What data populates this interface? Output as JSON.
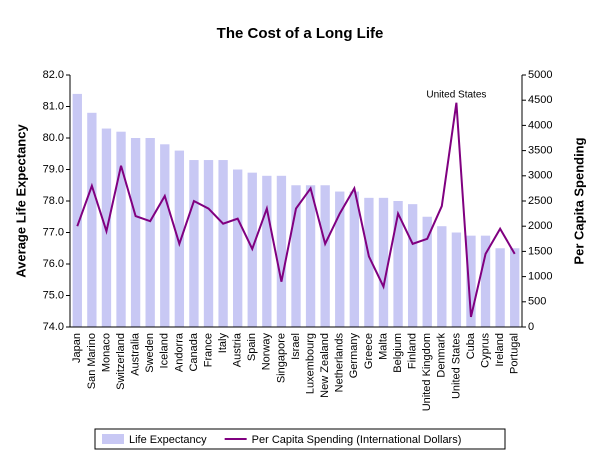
{
  "chart_data": {
    "type": "bar",
    "title": "The Cost of a Long Life",
    "y_label": "Average Life Expectancy",
    "y2_label": "Per Capita Spending",
    "annotation": "United States",
    "categories": [
      "Japan",
      "San Marino",
      "Monaco",
      "Switzerland",
      "Australia",
      "Sweden",
      "Iceland",
      "Andorra",
      "Canada",
      "France",
      "Italy",
      "Austria",
      "Spain",
      "Norway",
      "Singapore",
      "Israel",
      "Luxembourg",
      "New Zealand",
      "Netherlands",
      "Germany",
      "Greece",
      "Malta",
      "Belgium",
      "Finland",
      "United Kingdom",
      "Denmark",
      "United States",
      "Cuba",
      "Cyprus",
      "Ireland",
      "Portugal"
    ],
    "series": [
      {
        "name": "Life Expectancy",
        "type": "bar",
        "color": "#c8c8f4",
        "values": [
          81.4,
          80.8,
          80.3,
          80.2,
          80.0,
          80.0,
          79.8,
          79.6,
          79.3,
          79.3,
          79.3,
          79.0,
          78.9,
          78.8,
          78.8,
          78.5,
          78.5,
          78.5,
          78.3,
          78.3,
          78.1,
          78.1,
          78.0,
          77.9,
          77.5,
          77.2,
          77.0,
          76.9,
          76.9,
          76.5,
          76.5
        ]
      },
      {
        "name": "Per Capita Spending (International Dollars)",
        "type": "line",
        "axis": "y2",
        "color": "#800080",
        "values": [
          2000,
          2800,
          1900,
          3200,
          2200,
          2100,
          2600,
          1650,
          2500,
          2350,
          2050,
          2150,
          1550,
          2350,
          900,
          2350,
          2750,
          1650,
          2250,
          2750,
          1400,
          800,
          2250,
          1650,
          1750,
          2400,
          4450,
          200,
          1450,
          1950,
          1450
        ]
      }
    ],
    "ylim": [
      74,
      82
    ],
    "yticks": [
      {
        "value": 74,
        "label": "74.0"
      },
      {
        "value": 75,
        "label": "75.0"
      },
      {
        "value": 76,
        "label": "76.0"
      },
      {
        "value": 77,
        "label": "77.0"
      },
      {
        "value": 78,
        "label": "78.0"
      },
      {
        "value": 79,
        "label": "79.0"
      },
      {
        "value": 80,
        "label": "80.0"
      },
      {
        "value": 81,
        "label": "81.0"
      },
      {
        "value": 82,
        "label": "82.0"
      }
    ],
    "y2lim": [
      0,
      5000
    ],
    "y2ticks": [
      0,
      500,
      1000,
      1500,
      2000,
      2500,
      3000,
      3500,
      4000,
      4500,
      5000
    ],
    "legend": "bottom"
  }
}
